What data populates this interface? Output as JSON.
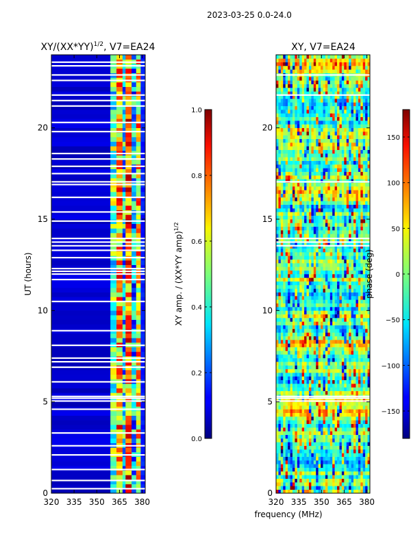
{
  "figure": {
    "suptitle": "2023-03-25 0.0-24.0",
    "shared_xlabel": "frequency (MHz)"
  },
  "chart_data": [
    {
      "type": "heatmap",
      "title": "XY/(XX*YY)",
      "title_superscript": "1/2",
      "title_suffix": ", V7=EA24",
      "xlabel": "",
      "ylabel": "UT (hours)",
      "xlim": [
        320,
        382
      ],
      "ylim": [
        0,
        24
      ],
      "x_ticks": [
        320,
        335,
        350,
        365,
        380
      ],
      "y_ticks": [
        0,
        5,
        10,
        15,
        20
      ],
      "channel_bands_mhz": [
        [
          320,
          359,
          0.05
        ],
        [
          359,
          363,
          0.45
        ],
        [
          363,
          367,
          0.7
        ],
        [
          367,
          369,
          0.35
        ],
        [
          369,
          373,
          0.75
        ],
        [
          373,
          376,
          0.3
        ],
        [
          376,
          379,
          0.65
        ],
        [
          379,
          382,
          0.12
        ]
      ],
      "colorbar": {
        "label": "XY amp. / (XX*YY amp)",
        "label_superscript": "1/2",
        "range": [
          0.0,
          1.0
        ],
        "ticks": [
          "0.0",
          "0.2",
          "0.4",
          "0.6",
          "0.8",
          "1.0"
        ]
      },
      "flagged_ut_hours": [
        0.25,
        0.7,
        1.3,
        2.1,
        2.6,
        3.3,
        4.6,
        5.05,
        5.2,
        5.3,
        6.1,
        6.9,
        7.2,
        7.4,
        8.1,
        8.9,
        10.5,
        11.7,
        12.0,
        12.15,
        12.3,
        12.9,
        13.3,
        13.55,
        13.75,
        13.95,
        14.9,
        15.4,
        16.2,
        16.9,
        17.05,
        17.5,
        17.9,
        18.3,
        18.6,
        19.8,
        20.3,
        21.2,
        21.5,
        21.8,
        22.6,
        22.9,
        23.4,
        23.6
      ]
    },
    {
      "type": "heatmap",
      "title": "XY, V7=EA24",
      "xlabel": "frequency (MHz)",
      "ylabel": "",
      "xlim": [
        320,
        382
      ],
      "ylim": [
        0,
        24
      ],
      "x_ticks": [
        320,
        335,
        350,
        365,
        380
      ],
      "y_ticks": [
        0,
        5,
        10,
        15,
        20
      ],
      "colorbar": {
        "label": "phase (deg)",
        "range": [
          -180,
          180
        ],
        "ticks": [
          "−150",
          "−100",
          "−50",
          "0",
          "50",
          "100",
          "150"
        ]
      },
      "flagged_ut_hours": [
        5.05,
        5.2,
        5.3,
        13.55,
        13.75,
        13.95,
        17.05,
        21.8,
        22.9
      ]
    }
  ]
}
